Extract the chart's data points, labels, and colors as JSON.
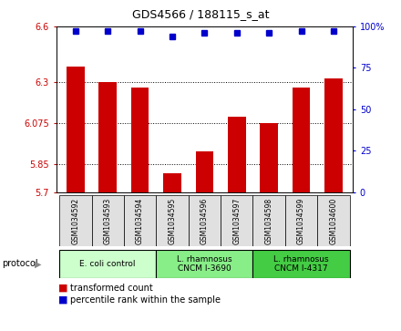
{
  "title": "GDS4566 / 188115_s_at",
  "samples": [
    "GSM1034592",
    "GSM1034593",
    "GSM1034594",
    "GSM1034595",
    "GSM1034596",
    "GSM1034597",
    "GSM1034598",
    "GSM1034599",
    "GSM1034600"
  ],
  "red_values": [
    6.38,
    6.3,
    6.27,
    5.8,
    5.92,
    6.11,
    6.075,
    6.27,
    6.32
  ],
  "blue_values": [
    97,
    97,
    97,
    94,
    96,
    96,
    96,
    97,
    97
  ],
  "ylim_left": [
    5.7,
    6.6
  ],
  "ylim_right": [
    0,
    100
  ],
  "yticks_left": [
    5.7,
    5.85,
    6.075,
    6.3,
    6.6
  ],
  "yticks_right": [
    0,
    25,
    50,
    75,
    100
  ],
  "ytick_labels_left": [
    "5.7",
    "5.85",
    "6.075",
    "6.3",
    "6.6"
  ],
  "ytick_labels_right": [
    "0",
    "25",
    "50",
    "75",
    "100%"
  ],
  "hlines": [
    6.3,
    6.075,
    5.85
  ],
  "red_color": "#cc0000",
  "blue_color": "#0000cc",
  "protocol_groups": [
    {
      "label": "E. coli control",
      "indices": [
        0,
        1,
        2
      ],
      "color": "#ccffcc"
    },
    {
      "label": "L. rhamnosus\nCNCM I-3690",
      "indices": [
        3,
        4,
        5
      ],
      "color": "#88ee88"
    },
    {
      "label": "L. rhamnosus\nCNCM I-4317",
      "indices": [
        6,
        7,
        8
      ],
      "color": "#44cc44"
    }
  ],
  "legend_red": "transformed count",
  "legend_blue": "percentile rank within the sample",
  "bar_width": 0.55,
  "figsize": [
    4.4,
    3.63
  ],
  "dpi": 100
}
